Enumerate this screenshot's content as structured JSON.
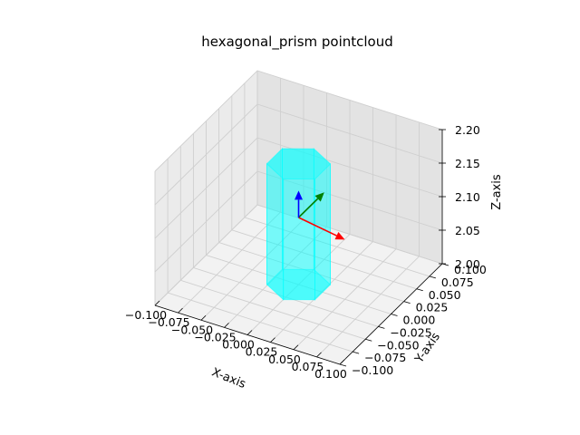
{
  "chart_data": {
    "type": "scatter",
    "dimension": "3d",
    "title": "hexagonal_prism pointcloud",
    "xlabel": "X-axis",
    "ylabel": "Y-axis",
    "zlabel": "Z-axis",
    "xlim": [
      -0.1,
      0.1
    ],
    "ylim": [
      -0.1,
      0.1
    ],
    "zlim": [
      2.0,
      2.2
    ],
    "x_ticks": [
      -0.1,
      -0.075,
      -0.05,
      -0.025,
      0.0,
      0.025,
      0.05,
      0.075,
      0.1
    ],
    "y_ticks": [
      -0.1,
      -0.075,
      -0.05,
      -0.025,
      0.0,
      0.025,
      0.05,
      0.075,
      0.1
    ],
    "z_ticks": [
      2.0,
      2.05,
      2.1,
      2.15,
      2.2
    ],
    "x_tick_labels": [
      "−0.100",
      "−0.075",
      "−0.050",
      "−0.025",
      "0.000",
      "0.025",
      "0.050",
      "0.075",
      "0.100"
    ],
    "y_tick_labels": [
      "−0.100",
      "−0.075",
      "−0.050",
      "−0.025",
      "0.000",
      "0.025",
      "0.050",
      "0.075",
      "0.100"
    ],
    "z_tick_labels": [
      "2.00",
      "2.05",
      "2.10",
      "2.15",
      "2.20"
    ],
    "grid": true,
    "series": [
      {
        "shape": "hexagonal_prism",
        "color": "#00ffff",
        "alpha": 0.3,
        "center": [
          0.0,
          0.0
        ],
        "radius": 0.03,
        "z_range": [
          2.0,
          2.18
        ]
      }
    ],
    "frame_axes": {
      "origin": [
        0.0,
        0.0,
        2.1
      ],
      "length": 0.05,
      "x_color": "#ff0000",
      "y_color": "#008000",
      "z_color": "#0000ff"
    }
  }
}
